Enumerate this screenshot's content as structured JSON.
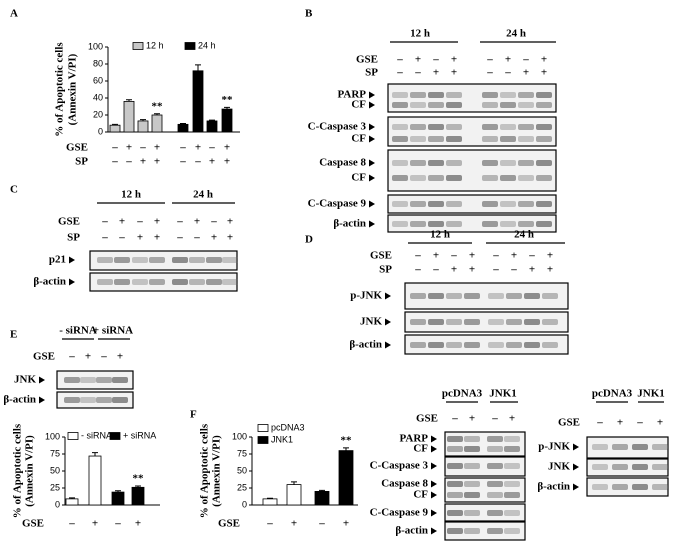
{
  "panels": {
    "letters": [
      "A",
      "B",
      "C",
      "D",
      "E",
      "F"
    ]
  },
  "chart_data": [
    {
      "type": "bar",
      "ylabel": [
        "% of Apoptotic cells",
        "(Annexin V/PI)"
      ],
      "ylim": [
        0,
        100
      ],
      "yticks": [
        0,
        20,
        40,
        60,
        80,
        100
      ],
      "series": [
        {
          "name": "12 h",
          "color": "#c8c8c8",
          "values": [
            8,
            36,
            13,
            20
          ],
          "errors": [
            1,
            2,
            1.5,
            1.5
          ],
          "annotations": [
            null,
            null,
            null,
            "**"
          ]
        },
        {
          "name": "24 h",
          "color": "#000000",
          "values": [
            9,
            72,
            13,
            27
          ],
          "errors": [
            1,
            7,
            1,
            2
          ],
          "annotations": [
            null,
            null,
            null,
            "**"
          ]
        }
      ],
      "conditions": [
        {
          "label": "GSE",
          "signs": [
            "–",
            "+",
            "–",
            "+",
            "–",
            "+",
            "–",
            "+"
          ]
        },
        {
          "label": "SP",
          "signs": [
            "–",
            "–",
            "+",
            "+",
            "–",
            "–",
            "+",
            "+"
          ]
        }
      ]
    },
    {
      "type": "bar",
      "ylabel": [
        "% of Apoptotic cells",
        "(Annexin V/PI)"
      ],
      "ylim": [
        0,
        100
      ],
      "yticks": [
        0,
        25,
        50,
        75,
        100
      ],
      "series": [
        {
          "name": "- siRNA",
          "color": "#ffffff",
          "values": [
            9,
            72
          ],
          "errors": [
            1.5,
            5
          ],
          "annotations": [
            null,
            null
          ]
        },
        {
          "name": "+ siRNA",
          "color": "#000000",
          "values": [
            19,
            26
          ],
          "errors": [
            2,
            2
          ],
          "annotations": [
            null,
            "**"
          ]
        }
      ],
      "conditions": [
        {
          "label": "GSE",
          "signs": [
            "–",
            "+",
            "–",
            "+"
          ]
        }
      ]
    },
    {
      "type": "bar",
      "ylabel": [
        "% of Apoptotic cells",
        "(Annexin V/PI)"
      ],
      "ylim": [
        0,
        100
      ],
      "yticks": [
        0,
        25,
        50,
        75,
        100
      ],
      "series": [
        {
          "name": "pcDNA3",
          "color": "#ffffff",
          "values": [
            9,
            30
          ],
          "errors": [
            1,
            4
          ],
          "annotations": [
            null,
            null
          ]
        },
        {
          "name": "JNK1",
          "color": "#000000",
          "values": [
            20,
            80
          ],
          "errors": [
            1.5,
            4
          ],
          "annotations": [
            null,
            "**"
          ]
        }
      ],
      "conditions": [
        {
          "label": "GSE",
          "signs": [
            "–",
            "+",
            "–",
            "+"
          ]
        }
      ]
    }
  ],
  "blots": [
    {
      "groups": [
        "12 h",
        "24 h"
      ],
      "conditions": [
        {
          "label": "GSE",
          "signs": [
            "–",
            "+",
            "–",
            "+",
            "–",
            "+",
            "–",
            "+"
          ]
        },
        {
          "label": "SP",
          "signs": [
            "–",
            "–",
            "+",
            "+",
            "–",
            "–",
            "+",
            "+"
          ]
        }
      ],
      "boxes": [
        [
          "PARP",
          "CF"
        ],
        [
          "C-Caspase 3",
          "CF"
        ],
        [
          "Caspase 8",
          "CF"
        ],
        [
          "C-Caspase 9"
        ],
        [
          "β-actin"
        ]
      ]
    },
    {
      "groups": [
        "12 h",
        "24 h"
      ],
      "conditions": [
        {
          "label": "GSE",
          "signs": [
            "–",
            "+",
            "–",
            "+",
            "–",
            "+",
            "–",
            "+"
          ]
        },
        {
          "label": "SP",
          "signs": [
            "–",
            "–",
            "+",
            "+",
            "–",
            "–",
            "+",
            "+"
          ]
        }
      ],
      "boxes": [
        [
          "p21"
        ],
        [
          "β-actin"
        ]
      ]
    },
    {
      "groups": [
        "12 h",
        "24 h"
      ],
      "conditions": [
        {
          "label": "GSE",
          "signs": [
            "–",
            "+",
            "–",
            "+",
            "–",
            "+",
            "–",
            "+"
          ]
        },
        {
          "label": "SP",
          "signs": [
            "–",
            "–",
            "+",
            "+",
            "–",
            "–",
            "+",
            "+"
          ]
        }
      ],
      "boxes": [
        [
          "p-JNK"
        ],
        [
          "JNK"
        ],
        [
          "β-actin"
        ]
      ]
    },
    {
      "groups": [
        "- siRNA",
        "+ siRNA"
      ],
      "conditions": [
        {
          "label": "GSE",
          "signs": [
            "–",
            "+",
            "–",
            "+"
          ]
        }
      ],
      "boxes": [
        [
          "JNK"
        ],
        [
          "β-actin"
        ]
      ]
    },
    {
      "groups": [
        "pcDNA3",
        "JNK1"
      ],
      "conditions": [
        {
          "label": "GSE",
          "signs": [
            "–",
            "+",
            "–",
            "+"
          ]
        }
      ],
      "boxes": [
        [
          "PARP",
          "CF"
        ],
        [
          "C-Caspase 3"
        ],
        [
          "Caspase 8",
          "CF"
        ],
        [
          "C-Caspase 9"
        ],
        [
          "β-actin"
        ]
      ]
    },
    {
      "groups": [
        "pcDNA3",
        "JNK1"
      ],
      "conditions": [
        {
          "label": "GSE",
          "signs": [
            "–",
            "+",
            "–",
            "+"
          ]
        }
      ],
      "boxes": [
        [
          "p-JNK"
        ],
        [
          "JNK"
        ],
        [
          "β-actin"
        ]
      ]
    }
  ]
}
